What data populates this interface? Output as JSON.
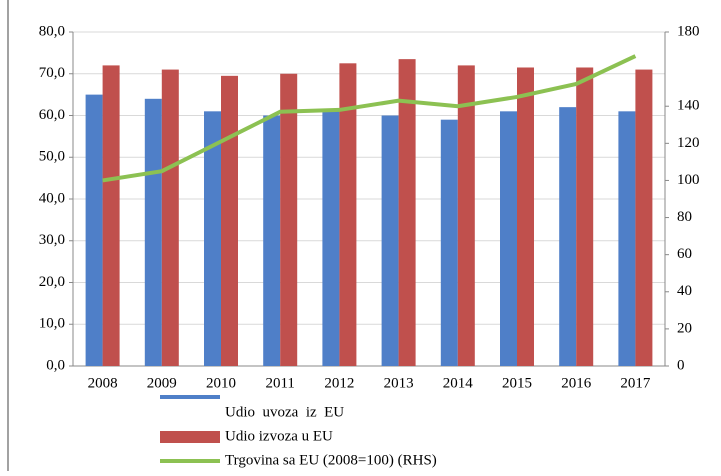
{
  "chart_data": {
    "type": "bar",
    "categories": [
      "2008",
      "2009",
      "2010",
      "2011",
      "2012",
      "2013",
      "2014",
      "2015",
      "2016",
      "2017"
    ],
    "series": [
      {
        "name": "Udio  uvoza  iz  EU",
        "color": "#4f7fc8",
        "values": [
          65,
          64,
          61,
          60,
          61,
          60,
          59,
          61,
          62,
          61
        ]
      },
      {
        "name": "Udio izvoza u EU",
        "color": "#c0504d",
        "values": [
          72,
          71,
          69.5,
          70,
          72.5,
          73.5,
          72,
          71.5,
          71.5,
          71
        ]
      },
      {
        "name": "Trgovina sa EU (2008=100) (RHS)",
        "color": "#8cc152",
        "type": "line",
        "axis": "y2",
        "values": [
          100,
          105,
          121,
          137,
          138,
          143,
          140,
          145,
          152,
          167
        ]
      }
    ],
    "ylim": [
      0,
      80
    ],
    "yticks": [
      {
        "value": 0,
        "label": "0,0"
      },
      {
        "value": 10,
        "label": "10,0"
      },
      {
        "value": 20,
        "label": "20,0"
      },
      {
        "value": 30,
        "label": "30,0"
      },
      {
        "value": 40,
        "label": "40,0"
      },
      {
        "value": 50,
        "label": "50,0"
      },
      {
        "value": 60,
        "label": "60,0"
      },
      {
        "value": 70,
        "label": "70,0"
      },
      {
        "value": 80,
        "label": "80,0"
      }
    ],
    "y2lim": [
      0,
      180
    ],
    "y2ticks": [
      0,
      20,
      40,
      60,
      80,
      100,
      120,
      140,
      180
    ],
    "grid": true,
    "legend": "bottom"
  }
}
